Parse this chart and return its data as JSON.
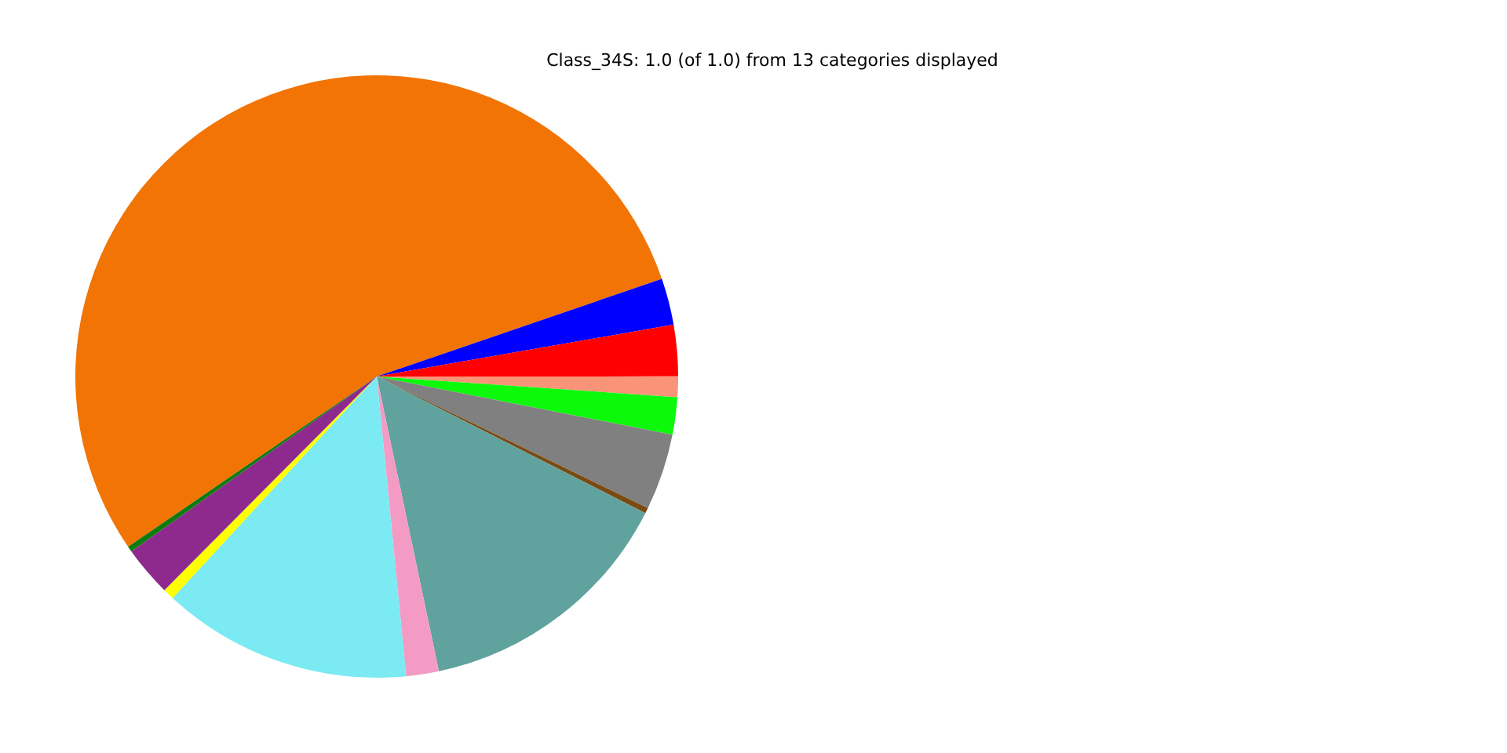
{
  "chart_data": {
    "type": "pie",
    "title": "Class_34S: 1.0 (of 1.0) from 13 categories displayed",
    "categories": [
      null,
      null,
      null,
      null,
      null,
      null,
      null,
      null,
      null,
      null,
      null,
      null,
      null
    ],
    "values": [
      54.3,
      2.5,
      2.75,
      1.1,
      2.0,
      4.1,
      0.3,
      14.2,
      1.75,
      13.4,
      0.6,
      2.7,
      0.3
    ],
    "colors": [
      "#f27405",
      "#0000ff",
      "#ff0000",
      "#fa9479",
      "#0cf90c",
      "#808080",
      "#7b4a12",
      "#5fa29e",
      "#f39bc5",
      "#7beaf2",
      "#ffff00",
      "#8e2a8e",
      "#0f7a0f"
    ],
    "legend": false
  }
}
